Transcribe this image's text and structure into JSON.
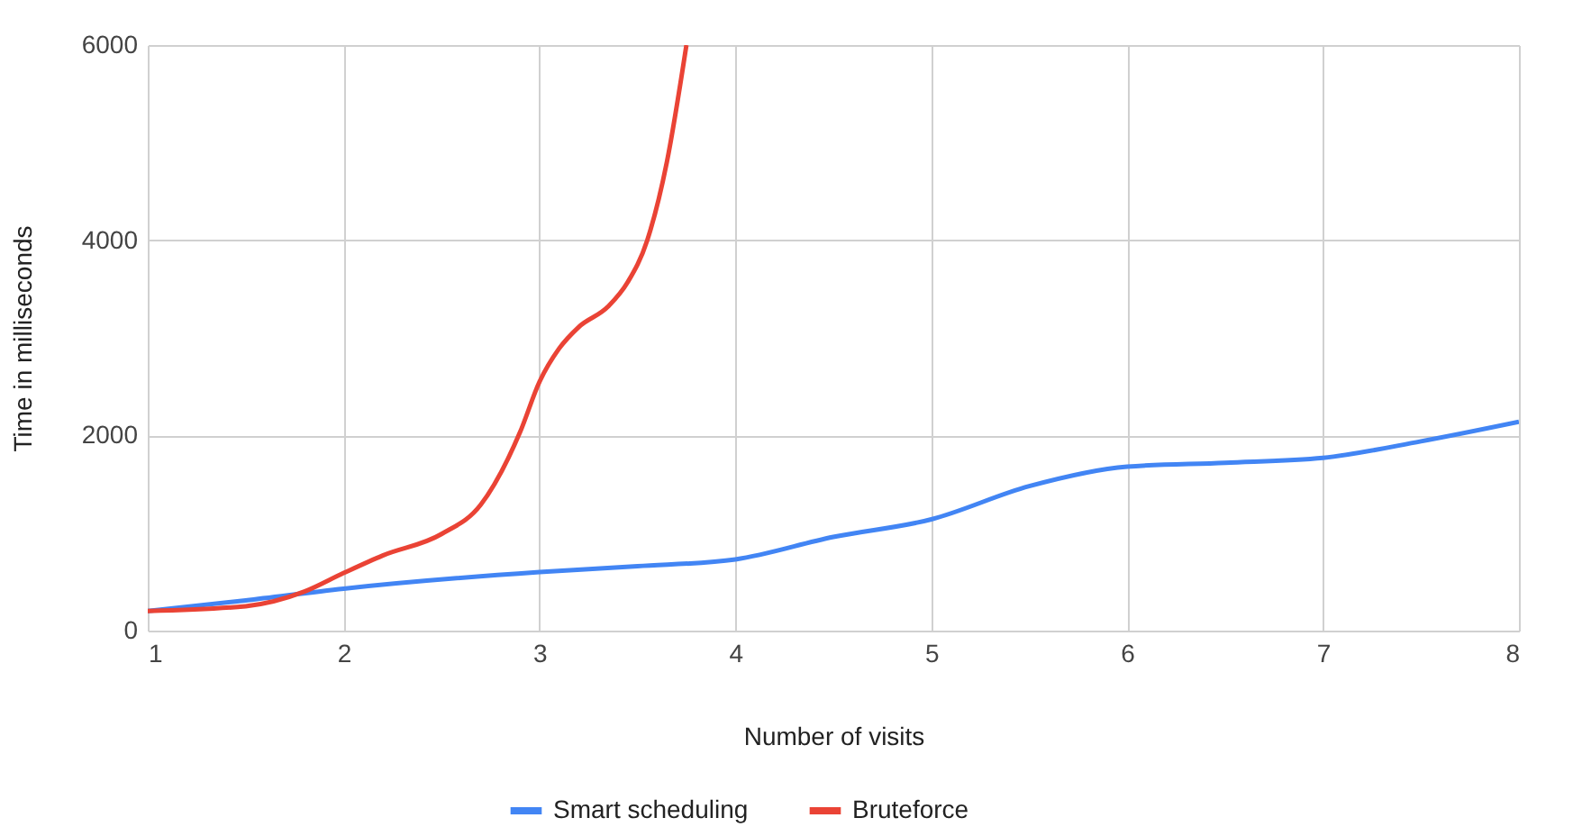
{
  "chart_data": {
    "type": "line",
    "xlabel": "Number of visits",
    "ylabel": "Time in milliseconds",
    "xlim": [
      1,
      8
    ],
    "xticks": [
      1,
      2,
      3,
      4,
      5,
      6,
      7,
      8
    ],
    "ylim": [
      0,
      6000
    ],
    "yticks": [
      0,
      2000,
      4000,
      6000
    ],
    "grid": true,
    "legend": "bottom",
    "series": [
      {
        "name": "Smart scheduling",
        "color": "#4285f4",
        "x": [
          1,
          1.5,
          2,
          3,
          3.5,
          4,
          4.5,
          5,
          5.5,
          6,
          6.5,
          7,
          7.5,
          8
        ],
        "values": [
          200,
          310,
          430,
          600,
          660,
          730,
          960,
          1140,
          1480,
          1680,
          1720,
          1770,
          1940,
          2140
        ]
      },
      {
        "name": "Bruteforce",
        "color": "#ea4335",
        "x": [
          1,
          1.5,
          1.8,
          2,
          2.2,
          2.5,
          2.7,
          2.9,
          3,
          3.1,
          3.2,
          3.35,
          3.45,
          3.55,
          3.65,
          3.75
        ],
        "values": [
          200,
          250,
          400,
          590,
          770,
          990,
          1290,
          2030,
          2550,
          2890,
          3110,
          3320,
          3570,
          4000,
          4800,
          6000
        ]
      }
    ]
  }
}
